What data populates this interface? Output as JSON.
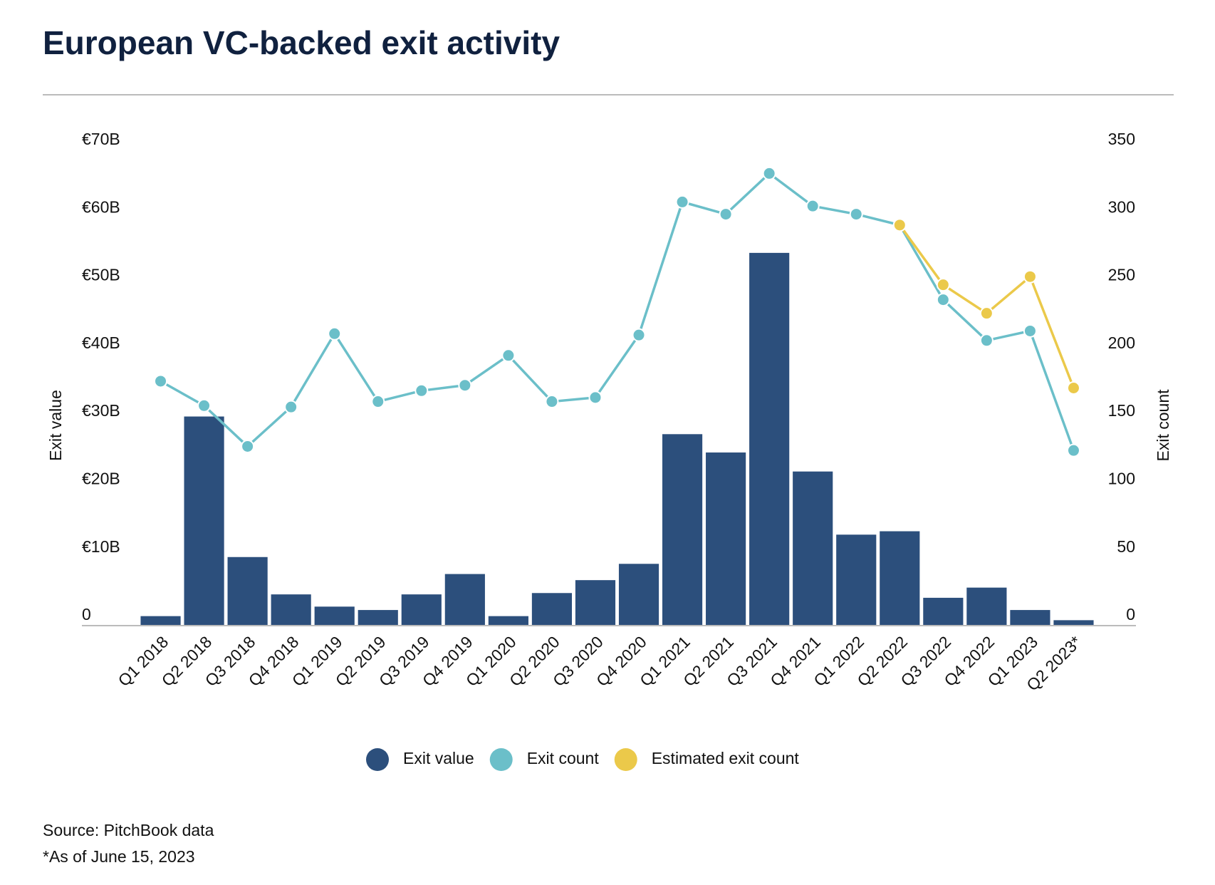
{
  "chart_data": {
    "type": "bar",
    "title": "European VC-backed exit activity",
    "y_label": "Exit value",
    "y2_label": "Exit count",
    "categories": [
      "Q1 2018",
      "Q2 2018",
      "Q3 2018",
      "Q4 2018",
      "Q1 2019",
      "Q2 2019",
      "Q3 2019",
      "Q4 2019",
      "Q1 2020",
      "Q2 2020",
      "Q3 2020",
      "Q4 2020",
      "Q1 2021",
      "Q2 2021",
      "Q3 2021",
      "Q4 2021",
      "Q1 2022",
      "Q2 2022",
      "Q3 2022",
      "Q4 2022",
      "Q1 2023",
      "Q2 2023*"
    ],
    "series": [
      {
        "name": "Exit value",
        "type": "bar",
        "color": "#2c4f7c",
        "values": [
          1.4,
          30.8,
          10.1,
          4.6,
          2.8,
          2.3,
          4.6,
          7.6,
          1.4,
          4.8,
          6.7,
          9.1,
          28.2,
          25.5,
          54.9,
          22.7,
          13.4,
          13.9,
          4.1,
          5.6,
          2.3,
          0.8
        ]
      },
      {
        "name": "Exit count",
        "type": "line",
        "axis": "y2",
        "color": "#6bbfc9",
        "values": [
          180,
          162,
          132,
          161,
          215,
          165,
          173,
          177,
          199,
          165,
          168,
          214,
          312,
          303,
          333,
          309,
          303,
          295,
          240,
          210,
          217,
          129
        ]
      },
      {
        "name": "Estimated exit count",
        "type": "line",
        "axis": "y2",
        "color": "#ebc94a",
        "values": [
          null,
          null,
          null,
          null,
          null,
          null,
          null,
          null,
          null,
          null,
          null,
          null,
          null,
          null,
          null,
          null,
          null,
          295,
          251,
          230,
          257,
          175
        ]
      }
    ],
    "ylim": [
      0,
      70
    ],
    "yticks": [
      0,
      {
        "value": 10,
        "label": "€10B"
      },
      {
        "value": 20,
        "label": "€20B"
      },
      {
        "value": 30,
        "label": "€30B"
      },
      {
        "value": 40,
        "label": "€40B"
      },
      {
        "value": 50,
        "label": "€50B"
      },
      {
        "value": 60,
        "label": "€60B"
      },
      {
        "value": 70,
        "label": "€70B"
      }
    ],
    "y2lim": [
      0,
      350
    ],
    "y2ticks": [
      0,
      50,
      100,
      150,
      200,
      250,
      300,
      350
    ],
    "source": "Source: PitchBook data",
    "note": "*As of June 15, 2023"
  }
}
